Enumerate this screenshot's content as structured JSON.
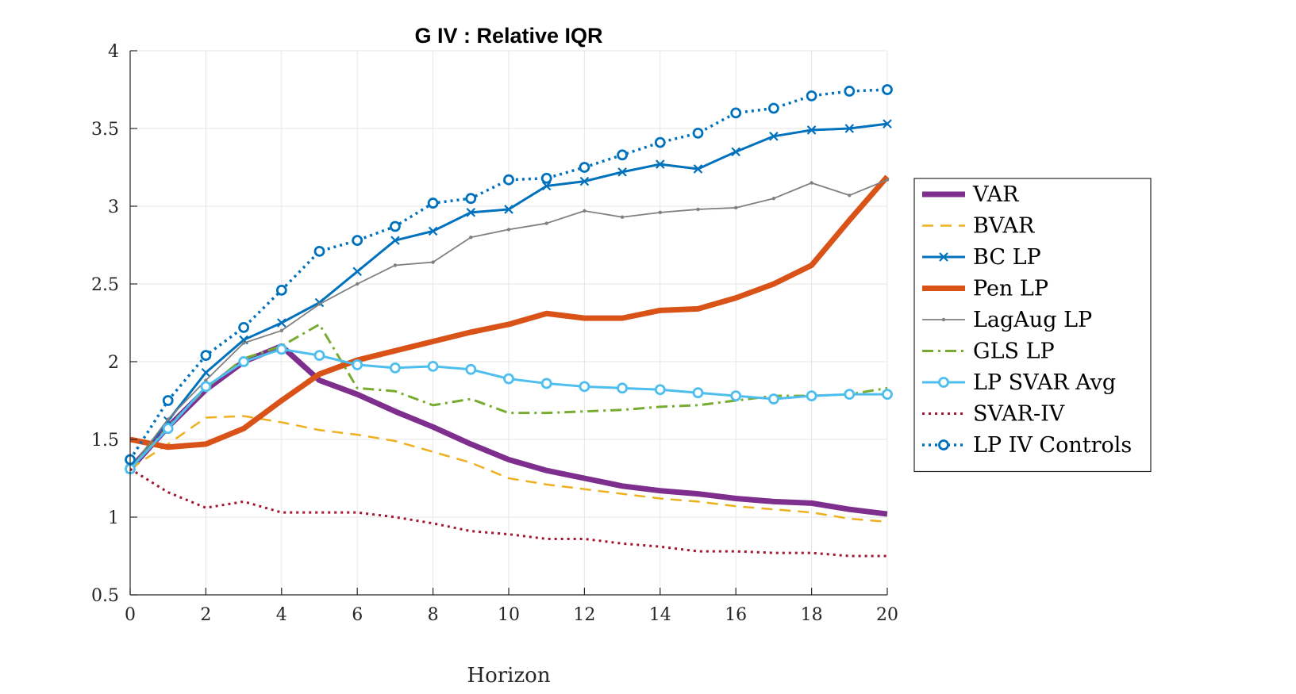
{
  "chart_data": {
    "type": "line",
    "title": "G IV : Relative IQR",
    "xlabel": "Horizon",
    "ylabel": "",
    "xlim": [
      0,
      20
    ],
    "ylim": [
      0.5,
      4
    ],
    "xticks": [
      0,
      2,
      4,
      6,
      8,
      10,
      12,
      14,
      16,
      18,
      20
    ],
    "yticks": [
      0.5,
      1,
      1.5,
      2,
      2.5,
      3,
      3.5,
      4
    ],
    "grid": true,
    "legend_position": "right",
    "x": [
      0,
      1,
      2,
      3,
      4,
      5,
      6,
      7,
      8,
      9,
      10,
      11,
      12,
      13,
      14,
      15,
      16,
      17,
      18,
      19,
      20
    ],
    "series": [
      {
        "name": "VAR",
        "color": "#7E2F8E",
        "style": "solid",
        "width": 7,
        "marker": "none",
        "values": [
          1.31,
          1.58,
          1.82,
          2.0,
          2.1,
          1.88,
          1.79,
          1.68,
          1.58,
          1.47,
          1.37,
          1.3,
          1.25,
          1.2,
          1.17,
          1.15,
          1.12,
          1.1,
          1.09,
          1.05,
          1.02
        ]
      },
      {
        "name": "BVAR",
        "color": "#EDB120",
        "style": "dashed",
        "width": 2.5,
        "marker": "none",
        "values": [
          1.31,
          1.47,
          1.64,
          1.65,
          1.61,
          1.56,
          1.53,
          1.49,
          1.42,
          1.35,
          1.25,
          1.21,
          1.18,
          1.15,
          1.12,
          1.1,
          1.07,
          1.05,
          1.03,
          0.99,
          0.97
        ]
      },
      {
        "name": "BC LP",
        "color": "#0072BD",
        "style": "solid",
        "width": 3,
        "marker": "x",
        "values": [
          1.31,
          1.62,
          1.93,
          2.14,
          2.25,
          2.38,
          2.58,
          2.78,
          2.84,
          2.96,
          2.98,
          3.13,
          3.16,
          3.22,
          3.27,
          3.24,
          3.35,
          3.45,
          3.49,
          3.5,
          3.53
        ]
      },
      {
        "name": "Pen LP",
        "color": "#D95319",
        "style": "solid",
        "width": 7,
        "marker": "none",
        "values": [
          1.5,
          1.45,
          1.47,
          1.57,
          1.75,
          1.92,
          2.01,
          2.07,
          2.13,
          2.19,
          2.24,
          2.31,
          2.28,
          2.28,
          2.33,
          2.34,
          2.41,
          2.5,
          2.62,
          2.91,
          3.19
        ]
      },
      {
        "name": "LagAug LP",
        "color": "#808080",
        "style": "solid",
        "width": 1.8,
        "marker": "dot",
        "values": [
          1.31,
          1.63,
          1.88,
          2.12,
          2.2,
          2.37,
          2.5,
          2.62,
          2.64,
          2.8,
          2.85,
          2.89,
          2.97,
          2.93,
          2.96,
          2.98,
          2.99,
          3.05,
          3.15,
          3.07,
          3.17
        ]
      },
      {
        "name": "GLS LP",
        "color": "#77AC30",
        "style": "dashdot",
        "width": 3,
        "marker": "none",
        "values": [
          1.31,
          1.58,
          1.83,
          2.02,
          2.1,
          2.24,
          1.83,
          1.81,
          1.72,
          1.76,
          1.67,
          1.67,
          1.68,
          1.69,
          1.71,
          1.72,
          1.75,
          1.78,
          1.78,
          1.79,
          1.83
        ]
      },
      {
        "name": "LP SVAR Avg",
        "color": "#4DBEEE",
        "style": "solid",
        "width": 3,
        "marker": "circle",
        "values": [
          1.31,
          1.57,
          1.84,
          2.0,
          2.08,
          2.04,
          1.98,
          1.96,
          1.97,
          1.95,
          1.89,
          1.86,
          1.84,
          1.83,
          1.82,
          1.8,
          1.78,
          1.76,
          1.78,
          1.79,
          1.79
        ]
      },
      {
        "name": "SVAR-IV",
        "color": "#A2142F",
        "style": "dotted",
        "width": 3,
        "marker": "none",
        "values": [
          1.31,
          1.16,
          1.06,
          1.1,
          1.03,
          1.03,
          1.03,
          1.0,
          0.96,
          0.91,
          0.89,
          0.86,
          0.86,
          0.83,
          0.81,
          0.78,
          0.78,
          0.77,
          0.77,
          0.75,
          0.75
        ]
      },
      {
        "name": "LP IV Controls",
        "color": "#0072BD",
        "style": "dotted",
        "width": 3.5,
        "marker": "circle",
        "values": [
          1.37,
          1.75,
          2.04,
          2.22,
          2.46,
          2.71,
          2.78,
          2.87,
          3.02,
          3.05,
          3.17,
          3.18,
          3.25,
          3.33,
          3.41,
          3.47,
          3.6,
          3.63,
          3.71,
          3.74,
          3.75
        ]
      }
    ]
  }
}
